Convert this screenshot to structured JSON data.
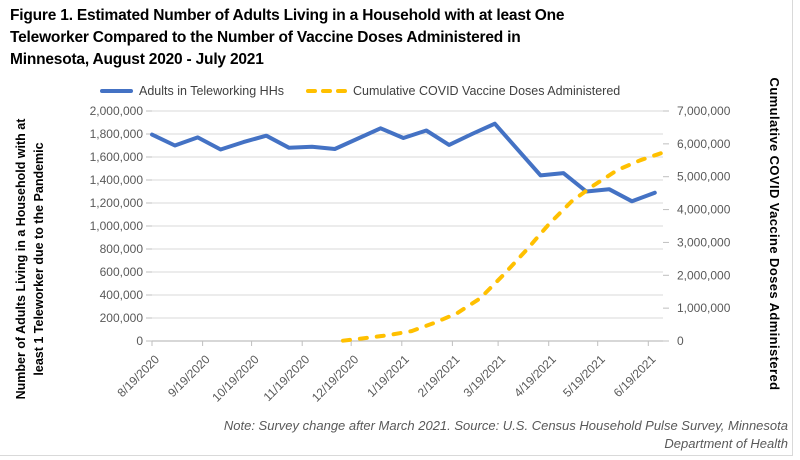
{
  "figure": {
    "title_lines": [
      "Figure 1. Estimated Number of Adults Living in a Household with at least One",
      "Teleworker Compared to the Number of Vaccine Doses Administered in",
      "Minnesota, August 2020 - July 2021"
    ],
    "note_lines": [
      "Note: Survey change after March 2021. Source: U.S. Census Household Pulse Survey, Minnesota",
      "Department of Health"
    ]
  },
  "legend": [
    {
      "label": "Adults in Teleworking HHs",
      "color": "#4472C4",
      "style": "solid"
    },
    {
      "label": "Cumulative COVID Vaccine Doses Administered",
      "color": "#FFC000",
      "style": "dashed"
    }
  ],
  "axis_titles": {
    "left_lines": [
      "Number of Adults Living in a Household with at",
      "least 1 Teleworker due to the Pandemic"
    ],
    "right": "Cumulative COVID Vaccine Doses Administered"
  },
  "chart_data": {
    "type": "line",
    "title": "Figure 1. Estimated Number of Adults Living in a Household with at least One Teleworker Compared to the Number of Vaccine Doses Administered in Minnesota, August 2020 - July 2021",
    "note": "Note: Survey change after March 2021. Source: U.S. Census Household Pulse Survey, Minnesota Department of Health",
    "grid": "horizontal",
    "legend_position": "top",
    "colors": {
      "grid": "#d9d9d9",
      "axis": "#bfbfbf",
      "tick_text": "#595959"
    },
    "x_axis": {
      "start": "8/19/2020",
      "end": "6/28/2021",
      "tick_labels": [
        "8/19/2020",
        "9/19/2020",
        "10/19/2020",
        "11/19/2020",
        "12/19/2020",
        "1/19/2021",
        "2/19/2021",
        "3/19/2021",
        "4/19/2021",
        "5/19/2021",
        "6/19/2021"
      ]
    },
    "y_axis_left": {
      "label": "Number of Adults Living in a Household with at least 1 Teleworker due to the Pandemic",
      "min": 0,
      "max": 2000000,
      "step": 200000
    },
    "y_axis_right": {
      "label": "Cumulative COVID Vaccine Doses Administered",
      "min": 0,
      "max": 7000000,
      "step": 1000000
    },
    "series": [
      {
        "name": "Adults in Teleworking HHs",
        "axis": "left",
        "color": "#4472C4",
        "style": "solid",
        "points": [
          {
            "date": "8/19/2020",
            "value": 1795000
          },
          {
            "date": "9/2/2020",
            "value": 1700000
          },
          {
            "date": "9/16/2020",
            "value": 1770000
          },
          {
            "date": "9/30/2020",
            "value": 1665000
          },
          {
            "date": "10/14/2020",
            "value": 1730000
          },
          {
            "date": "10/28/2020",
            "value": 1785000
          },
          {
            "date": "11/11/2020",
            "value": 1680000
          },
          {
            "date": "11/25/2020",
            "value": 1690000
          },
          {
            "date": "12/9/2020",
            "value": 1670000
          },
          {
            "date": "1/6/2021",
            "value": 1850000
          },
          {
            "date": "1/20/2021",
            "value": 1765000
          },
          {
            "date": "2/3/2021",
            "value": 1830000
          },
          {
            "date": "2/17/2021",
            "value": 1705000
          },
          {
            "date": "3/3/2021",
            "value": 1800000
          },
          {
            "date": "3/17/2021",
            "value": 1890000
          },
          {
            "date": "4/14/2021",
            "value": 1440000
          },
          {
            "date": "4/28/2021",
            "value": 1460000
          },
          {
            "date": "5/12/2021",
            "value": 1300000
          },
          {
            "date": "5/26/2021",
            "value": 1320000
          },
          {
            "date": "6/9/2021",
            "value": 1215000
          },
          {
            "date": "6/23/2021",
            "value": 1290000
          }
        ]
      },
      {
        "name": "Cumulative COVID Vaccine Doses Administered",
        "axis": "right",
        "color": "#FFC000",
        "style": "dashed",
        "points": [
          {
            "date": "12/14/2020",
            "value": 10000
          },
          {
            "date": "12/28/2020",
            "value": 90000
          },
          {
            "date": "1/11/2021",
            "value": 180000
          },
          {
            "date": "1/25/2021",
            "value": 300000
          },
          {
            "date": "2/8/2021",
            "value": 550000
          },
          {
            "date": "2/22/2021",
            "value": 850000
          },
          {
            "date": "3/8/2021",
            "value": 1300000
          },
          {
            "date": "3/22/2021",
            "value": 2000000
          },
          {
            "date": "4/5/2021",
            "value": 2750000
          },
          {
            "date": "4/19/2021",
            "value": 3550000
          },
          {
            "date": "5/3/2021",
            "value": 4250000
          },
          {
            "date": "5/17/2021",
            "value": 4750000
          },
          {
            "date": "5/31/2021",
            "value": 5200000
          },
          {
            "date": "6/14/2021",
            "value": 5500000
          },
          {
            "date": "6/27/2021",
            "value": 5720000
          }
        ]
      }
    ]
  }
}
